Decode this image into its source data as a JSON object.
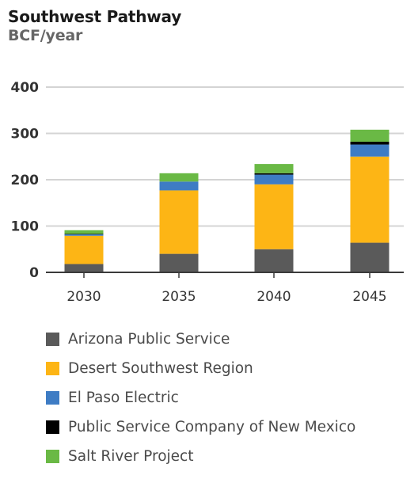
{
  "chart_data": {
    "type": "bar",
    "stacked": true,
    "title": "Southwest Pathway",
    "subtitle": "BCF/year",
    "xlabel": "",
    "ylabel": "",
    "categories": [
      "2030",
      "2035",
      "2040",
      "2045"
    ],
    "ylim": [
      0,
      400
    ],
    "yticks": [
      0,
      100,
      200,
      300,
      400
    ],
    "grid": true,
    "legend_position": "bottom",
    "series": [
      {
        "name": "Arizona Public Service",
        "color": "#5a5a5a",
        "values": [
          18,
          40,
          50,
          64
        ]
      },
      {
        "name": "Desert Southwest Region",
        "color": "#fdb515",
        "values": [
          61,
          137,
          140,
          186
        ]
      },
      {
        "name": "El Paso Electric",
        "color": "#3e7cc4",
        "values": [
          3,
          19,
          21,
          26
        ]
      },
      {
        "name": "Public Service Company of New Mexico",
        "color": "#000000",
        "values": [
          1,
          0,
          3,
          6
        ]
      },
      {
        "name": "Salt River Project",
        "color": "#6ab945",
        "values": [
          8,
          18,
          20,
          26
        ]
      }
    ]
  }
}
